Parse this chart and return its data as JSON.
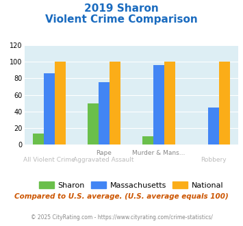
{
  "title_line1": "2019 Sharon",
  "title_line2": "Violent Crime Comparison",
  "cat_labels_top": [
    "",
    "Rape",
    "Murder & Mans...",
    ""
  ],
  "cat_labels_bot": [
    "All Violent Crime",
    "Aggravated Assault",
    "",
    "Robbery"
  ],
  "series": {
    "Sharon": [
      13,
      50,
      10,
      0
    ],
    "Massachusetts": [
      86,
      75,
      96,
      45
    ],
    "National": [
      100,
      100,
      100,
      100
    ]
  },
  "colors": {
    "Sharon": "#6abf4b",
    "Massachusetts": "#4285f4",
    "National": "#fbad18"
  },
  "ylim": [
    0,
    120
  ],
  "yticks": [
    0,
    20,
    40,
    60,
    80,
    100,
    120
  ],
  "title_color": "#1a6bbf",
  "bg_color": "#ddeef4",
  "footer_text": "Compared to U.S. average. (U.S. average equals 100)",
  "credit_text": "© 2025 CityRating.com - https://www.cityrating.com/crime-statistics/",
  "footer_color": "#cc5500",
  "credit_color": "#888888"
}
